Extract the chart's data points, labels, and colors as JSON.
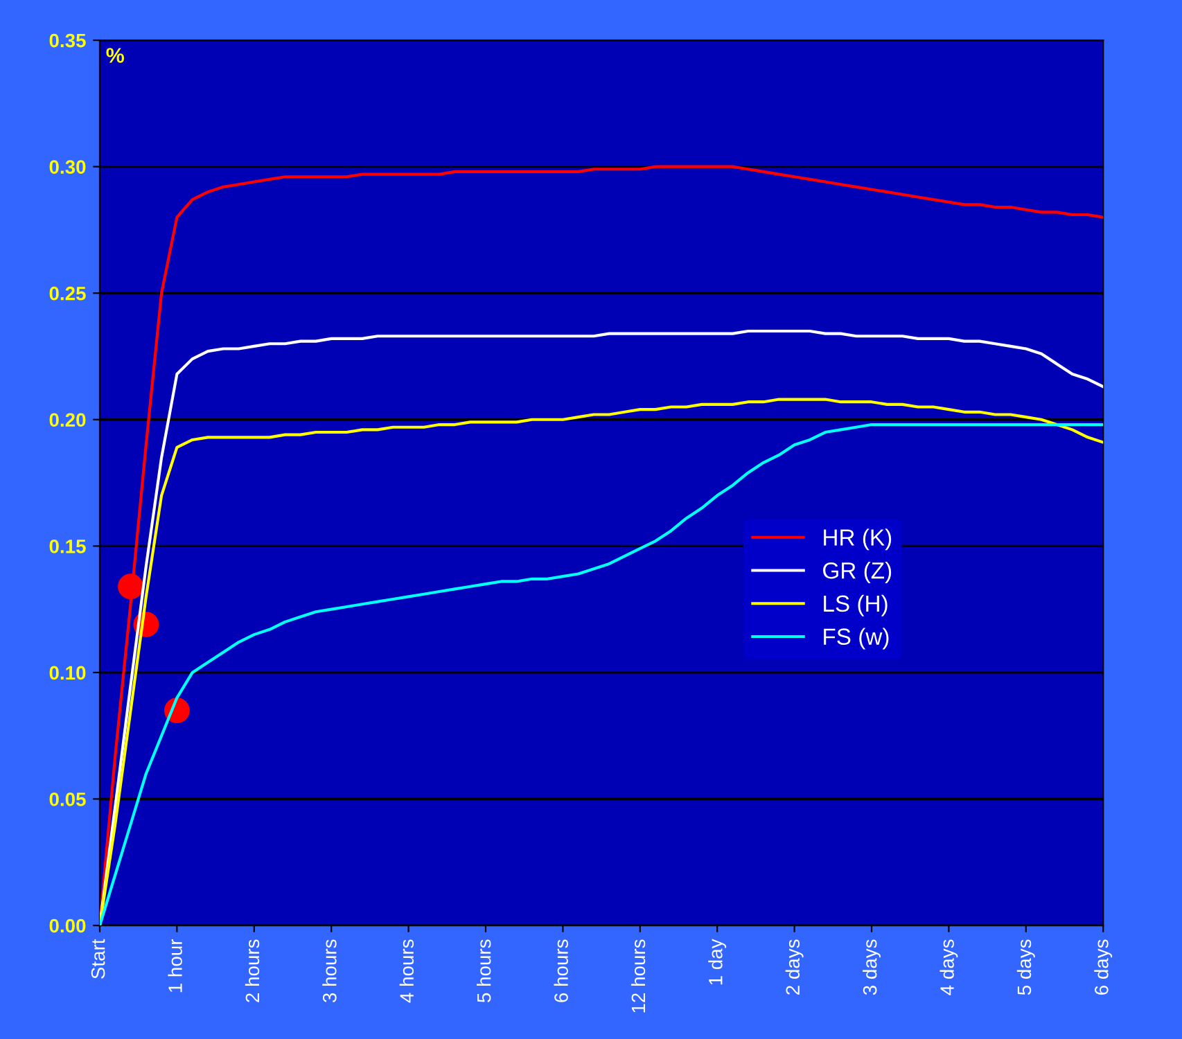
{
  "chart_data": {
    "type": "line",
    "ylabel": "%",
    "categories": [
      "Start",
      null,
      null,
      null,
      null,
      "1 hour",
      null,
      null,
      null,
      null,
      "2 hours",
      null,
      null,
      null,
      null,
      "3 hours",
      null,
      null,
      null,
      null,
      "4 hours",
      null,
      null,
      null,
      null,
      "5 hours",
      null,
      null,
      null,
      null,
      "6 hours",
      null,
      null,
      null,
      null,
      "12 hours",
      null,
      null,
      null,
      null,
      "1 day",
      null,
      null,
      null,
      null,
      "2 days",
      null,
      null,
      null,
      null,
      "3 days",
      null,
      null,
      null,
      null,
      "4 days",
      null,
      null,
      null,
      null,
      "5 days",
      null,
      null,
      null,
      null,
      "6 days"
    ],
    "ylim": [
      0,
      0.35
    ],
    "yticks": [
      {
        "value": 0,
        "label": "0.00"
      },
      {
        "value": 0.05,
        "label": "0.05"
      },
      {
        "value": 0.1,
        "label": "0.10"
      },
      {
        "value": 0.15,
        "label": "0.15"
      },
      {
        "value": 0.2,
        "label": "0.20"
      },
      {
        "value": 0.25,
        "label": "0.25"
      },
      {
        "value": 0.3,
        "label": "0.30"
      },
      {
        "value": 0.35,
        "label": "0.35"
      }
    ],
    "grid": "y",
    "legend": "right",
    "marker": "none",
    "line_style": "solid",
    "series": [
      {
        "name": "HR (K)",
        "color": "#ff0000",
        "values": [
          0,
          0.067,
          0.127,
          0.19,
          0.25,
          0.28,
          0.287,
          0.29,
          0.292,
          0.293,
          0.294,
          0.295,
          0.296,
          0.296,
          0.296,
          0.296,
          0.296,
          0.297,
          0.297,
          0.297,
          0.297,
          0.297,
          0.297,
          0.298,
          0.298,
          0.298,
          0.298,
          0.298,
          0.298,
          0.298,
          0.298,
          0.298,
          0.299,
          0.299,
          0.299,
          0.299,
          0.3,
          0.3,
          0.3,
          0.3,
          0.3,
          0.3,
          0.299,
          0.298,
          0.297,
          0.296,
          0.295,
          0.294,
          0.293,
          0.292,
          0.291,
          0.29,
          0.289,
          0.288,
          0.287,
          0.286,
          0.285,
          0.285,
          0.284,
          0.284,
          0.283,
          0.282,
          0.282,
          0.281,
          0.281,
          0.28
        ]
      },
      {
        "name": "GR (Z)",
        "color": "#ffffff",
        "values": [
          0,
          0.047,
          0.095,
          0.142,
          0.185,
          0.218,
          0.224,
          0.227,
          0.228,
          0.228,
          0.229,
          0.23,
          0.23,
          0.231,
          0.231,
          0.232,
          0.232,
          0.232,
          0.233,
          0.233,
          0.233,
          0.233,
          0.233,
          0.233,
          0.233,
          0.233,
          0.233,
          0.233,
          0.233,
          0.233,
          0.233,
          0.233,
          0.233,
          0.234,
          0.234,
          0.234,
          0.234,
          0.234,
          0.234,
          0.234,
          0.234,
          0.234,
          0.235,
          0.235,
          0.235,
          0.235,
          0.235,
          0.234,
          0.234,
          0.233,
          0.233,
          0.233,
          0.233,
          0.232,
          0.232,
          0.232,
          0.231,
          0.231,
          0.23,
          0.229,
          0.228,
          0.226,
          0.222,
          0.218,
          0.216,
          0.213
        ]
      },
      {
        "name": "LS (H)",
        "color": "#ffff00",
        "values": [
          0,
          0.04,
          0.085,
          0.13,
          0.17,
          0.189,
          0.192,
          0.193,
          0.193,
          0.193,
          0.193,
          0.193,
          0.194,
          0.194,
          0.195,
          0.195,
          0.195,
          0.196,
          0.196,
          0.197,
          0.197,
          0.197,
          0.198,
          0.198,
          0.199,
          0.199,
          0.199,
          0.199,
          0.2,
          0.2,
          0.2,
          0.201,
          0.202,
          0.202,
          0.203,
          0.204,
          0.204,
          0.205,
          0.205,
          0.206,
          0.206,
          0.206,
          0.207,
          0.207,
          0.208,
          0.208,
          0.208,
          0.208,
          0.207,
          0.207,
          0.207,
          0.206,
          0.206,
          0.205,
          0.205,
          0.204,
          0.203,
          0.203,
          0.202,
          0.202,
          0.201,
          0.2,
          0.198,
          0.196,
          0.193,
          0.191
        ]
      },
      {
        "name": "FS (w)",
        "color": "#00ffff",
        "values": [
          0,
          0.02,
          0.04,
          0.06,
          0.075,
          0.09,
          0.1,
          0.104,
          0.108,
          0.112,
          0.115,
          0.117,
          0.12,
          0.122,
          0.124,
          0.125,
          0.126,
          0.127,
          0.128,
          0.129,
          0.13,
          0.131,
          0.132,
          0.133,
          0.134,
          0.135,
          0.136,
          0.136,
          0.137,
          0.137,
          0.138,
          0.139,
          0.141,
          0.143,
          0.146,
          0.149,
          0.152,
          0.156,
          0.161,
          0.165,
          0.17,
          0.174,
          0.179,
          0.183,
          0.186,
          0.19,
          0.192,
          0.195,
          0.196,
          0.197,
          0.198,
          0.198,
          0.198,
          0.198,
          0.198,
          0.198,
          0.198,
          0.198,
          0.198,
          0.198,
          0.198,
          0.198,
          0.198,
          0.198,
          0.198,
          0.198
        ]
      },
      {
        "type": "scatter",
        "marker": "circle",
        "color": "#ff0000",
        "values": [
          null,
          null,
          0.134,
          0.119,
          null,
          0.085,
          null,
          null,
          null,
          null,
          null,
          null,
          null,
          null,
          null,
          null,
          null,
          null,
          null,
          null,
          null,
          null,
          null,
          null,
          null,
          null,
          null,
          null,
          null,
          null,
          null,
          null,
          null,
          null,
          null,
          null,
          null,
          null,
          null,
          null,
          null,
          null,
          null,
          null,
          null,
          null,
          null,
          null,
          null,
          null,
          null,
          null,
          null,
          null,
          null,
          null,
          null,
          null,
          null,
          null,
          null,
          null,
          null,
          null,
          null,
          null
        ]
      }
    ]
  }
}
